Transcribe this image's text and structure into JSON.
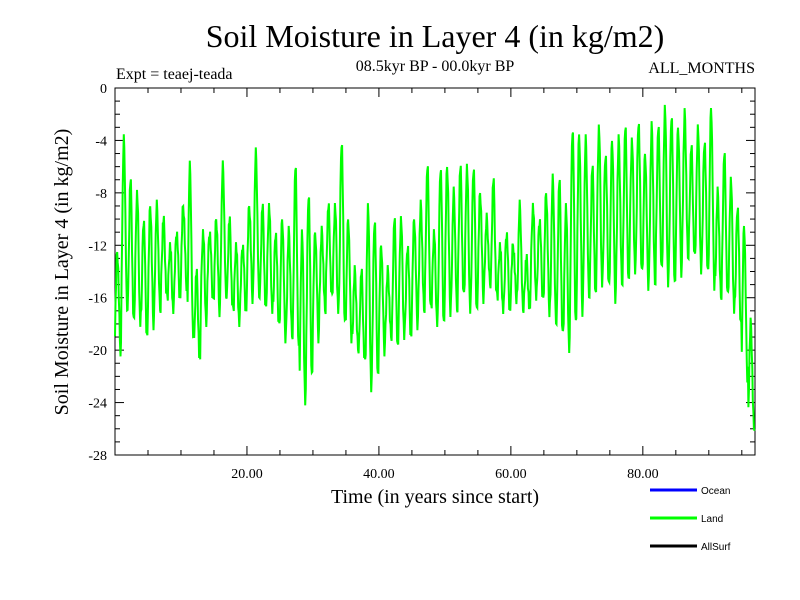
{
  "header": {
    "title": "Soil Moisture in Layer 4 (in kg/m2)",
    "experiment": "Expt = teaej-teada",
    "period": "08.5kyr BP - 00.0kyr BP",
    "months": "ALL_MONTHS"
  },
  "chart_data": {
    "type": "line",
    "title": "Soil Moisture in Layer 4 (in kg/m2)",
    "xlabel": "Time (in years since start)",
    "ylabel": "Soil Moisture in Layer 4 (in kg/m2)",
    "xlim": [
      0,
      97
    ],
    "ylim": [
      -28,
      0
    ],
    "x_ticks": [
      20,
      40,
      60,
      80
    ],
    "x_tick_labels": [
      "20.00",
      "40.00",
      "60.00",
      "80.00"
    ],
    "y_ticks": [
      0,
      -4,
      -8,
      -12,
      -16,
      -20,
      -24,
      -28
    ],
    "y_tick_labels": [
      "0",
      "-4",
      "-8",
      "-12",
      "-16",
      "-20",
      "-24",
      "-28"
    ],
    "legend": [
      "Ocean",
      "Land",
      "AllSurf"
    ],
    "legend_position": "bottom-right",
    "colors": {
      "Ocean": "#0000ff",
      "Land": "#00ff00",
      "AllSurf": "#000000"
    },
    "series": [
      {
        "name": "Land",
        "color": "#00ff00",
        "x_start": 0,
        "x_step": 1,
        "annual_peaks": [
          -12.5,
          -4,
          -7,
          -8,
          -10,
          -9,
          -9,
          -10,
          -12,
          -11,
          -9,
          -6,
          -14,
          -11,
          -11,
          -10,
          -6,
          -10,
          -12,
          -12,
          -9,
          -5,
          -9,
          -9,
          -11,
          -10,
          -11,
          -6,
          -11,
          -8,
          -11,
          -11,
          -9,
          -9,
          -4,
          -10,
          -14,
          -14,
          -9,
          -10,
          -12,
          -14,
          -10,
          -10,
          -12,
          -10,
          -9,
          -6,
          -11,
          -6,
          -6,
          -8,
          -6,
          -6,
          -6,
          -8,
          -10,
          -7,
          -12,
          -11,
          -12,
          -9,
          -13,
          -9,
          -10,
          -8,
          -7,
          -7,
          -9,
          -3,
          -3.5,
          -4,
          -6,
          -3,
          -5,
          -4,
          -4,
          -3,
          -4,
          -2.5,
          -5,
          -3,
          -3,
          -1.5,
          -2,
          -3,
          -2,
          -4.5,
          -3,
          -4,
          -1.5,
          -8,
          -5,
          -7,
          -9,
          -10.5,
          -18
        ],
        "annual_troughs": [
          -20,
          -17,
          -18,
          -18,
          -19,
          -18,
          -17,
          -16,
          -17,
          -16,
          -15,
          -19,
          -21,
          -18,
          -16,
          -17,
          -16,
          -17,
          -18,
          -17,
          -16,
          -16,
          -17,
          -17,
          -18,
          -19,
          -19,
          -20,
          -24,
          -22,
          -19,
          -17,
          -16,
          -17,
          -18,
          -19,
          -20,
          -21,
          -23,
          -22,
          -20,
          -19,
          -20,
          -19,
          -19,
          -18,
          -17,
          -17,
          -18,
          -18,
          -17,
          -17,
          -16,
          -17,
          -17,
          -16,
          -15,
          -16,
          -17,
          -17,
          -16,
          -17,
          -17,
          -16,
          -16,
          -17,
          -18,
          -19,
          -20,
          -18,
          -17,
          -16,
          -16,
          -15,
          -15,
          -16,
          -15,
          -15,
          -14,
          -14,
          -15,
          -15,
          -14,
          -15,
          -15,
          -14,
          -13,
          -13,
          -14,
          -14,
          -15,
          -16,
          -16,
          -17,
          -18,
          -22,
          -26
        ]
      }
    ]
  }
}
